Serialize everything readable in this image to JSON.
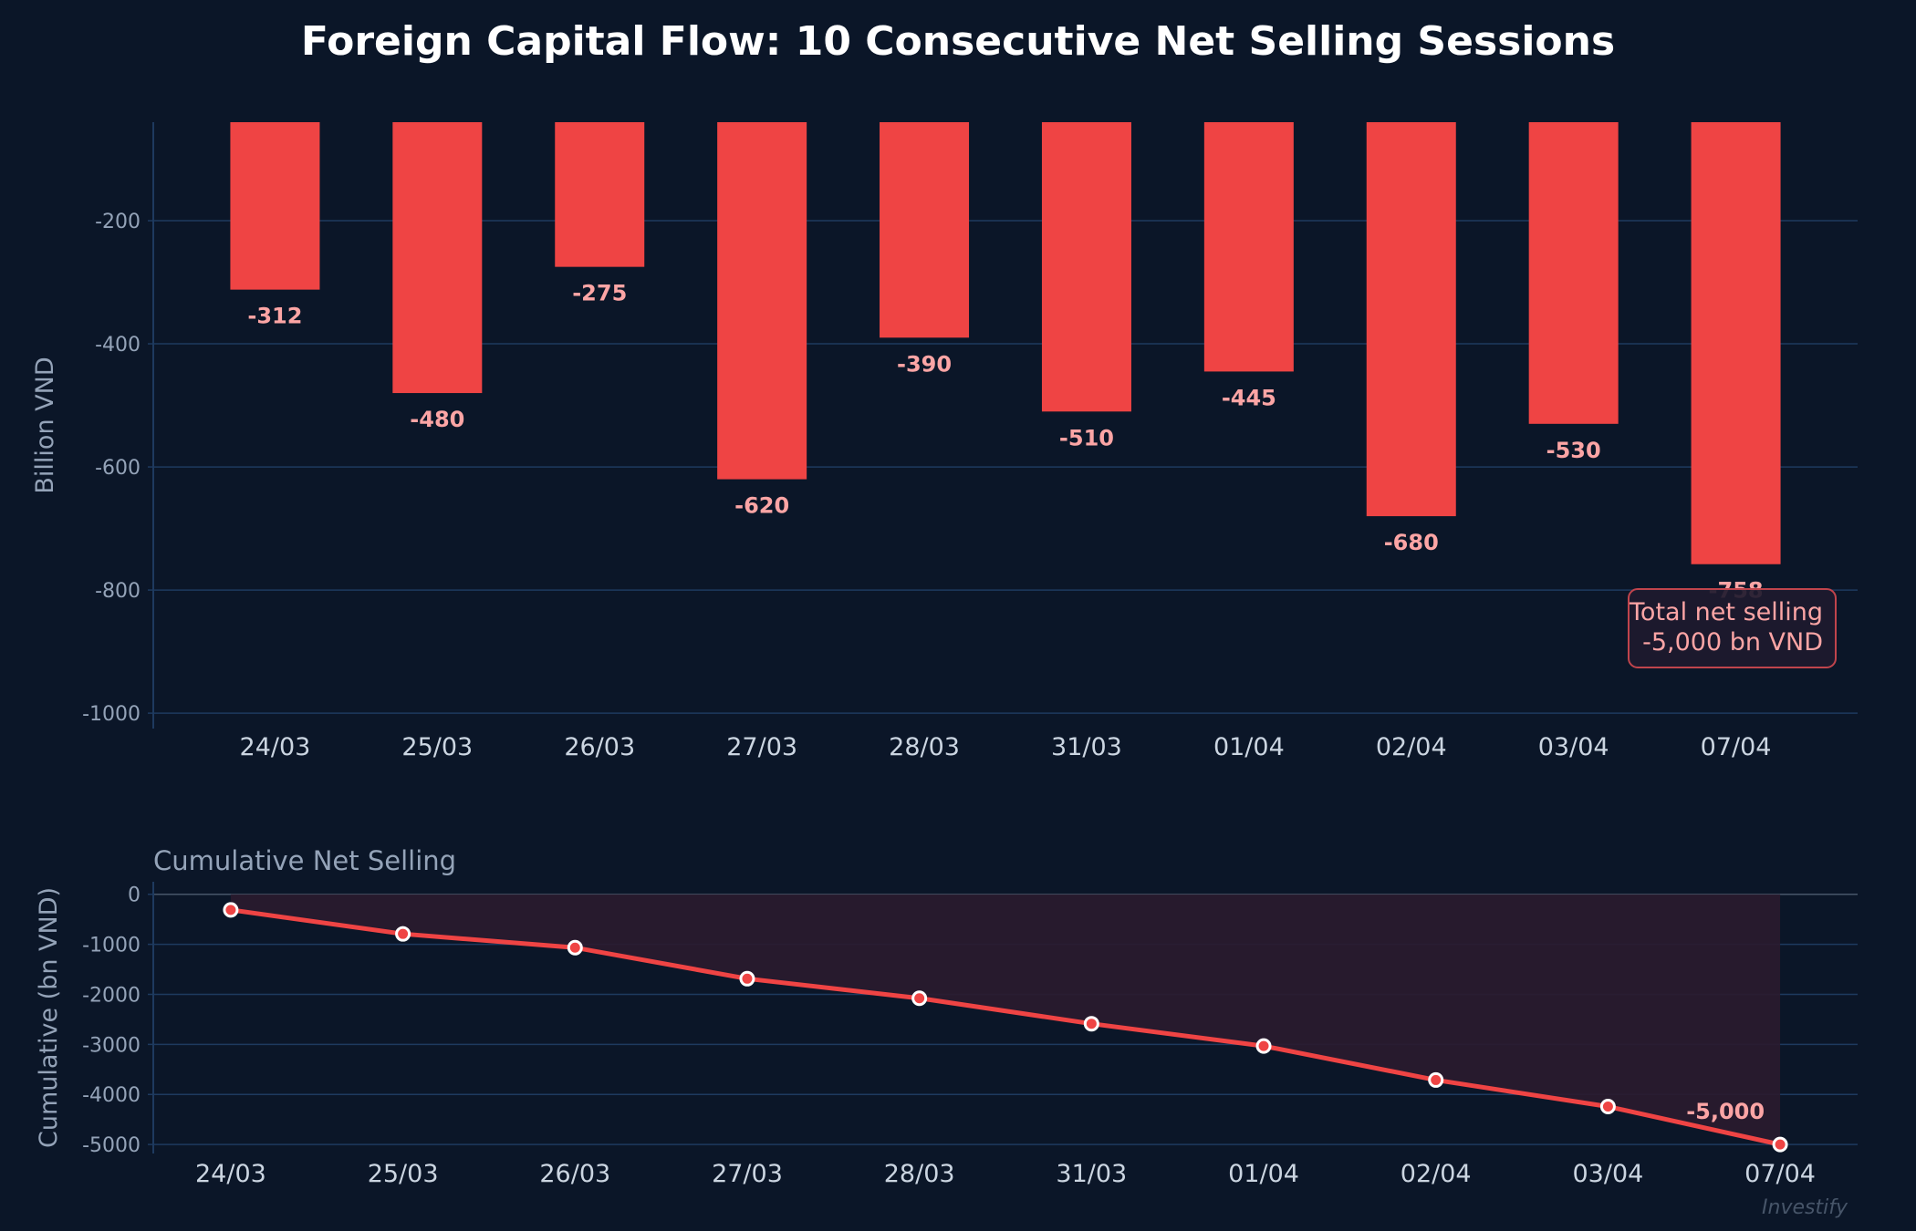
{
  "title": "Foreign Capital Flow: 10 Consecutive Net Selling Sessions",
  "watermark": "Investify",
  "colors": {
    "background": "#0b1628",
    "bar": "#ef4444",
    "label": "#fca5a5",
    "grid": "#1e3a5f",
    "fill": "#2a1b2e"
  },
  "chart_data": [
    {
      "type": "bar",
      "categories": [
        "24/03",
        "25/03",
        "26/03",
        "27/03",
        "28/03",
        "31/03",
        "01/04",
        "02/04",
        "03/04",
        "07/04"
      ],
      "values": [
        -312,
        -480,
        -275,
        -620,
        -390,
        -510,
        -445,
        -680,
        -530,
        -758
      ],
      "data_labels": [
        "-312",
        "-480",
        "-275",
        "-620",
        "-390",
        "-510",
        "-445",
        "-680",
        "-530",
        "-758"
      ],
      "ylabel": "Billion VND",
      "ylim": [
        -1025,
        -40
      ],
      "yticks": [
        "-200",
        "-400",
        "-600",
        "-800",
        "-1000"
      ],
      "grid": true,
      "annotation": {
        "line1": "Total net selling",
        "line2": "-5,000 bn VND"
      }
    },
    {
      "type": "line",
      "title": "Cumulative Net Selling",
      "categories": [
        "24/03",
        "25/03",
        "26/03",
        "27/03",
        "28/03",
        "31/03",
        "01/04",
        "02/04",
        "03/04",
        "07/04"
      ],
      "values": [
        -312,
        -792,
        -1067,
        -1687,
        -2077,
        -2587,
        -3032,
        -3712,
        -4242,
        -5000
      ],
      "end_label": "-5,000",
      "ylabel": "Cumulative (bn VND)",
      "ylim": [
        -5180,
        250
      ],
      "yticks": [
        "0",
        "-1000",
        "-2000",
        "-3000",
        "-4000",
        "-5000"
      ],
      "grid": true,
      "area_fill": true
    }
  ]
}
